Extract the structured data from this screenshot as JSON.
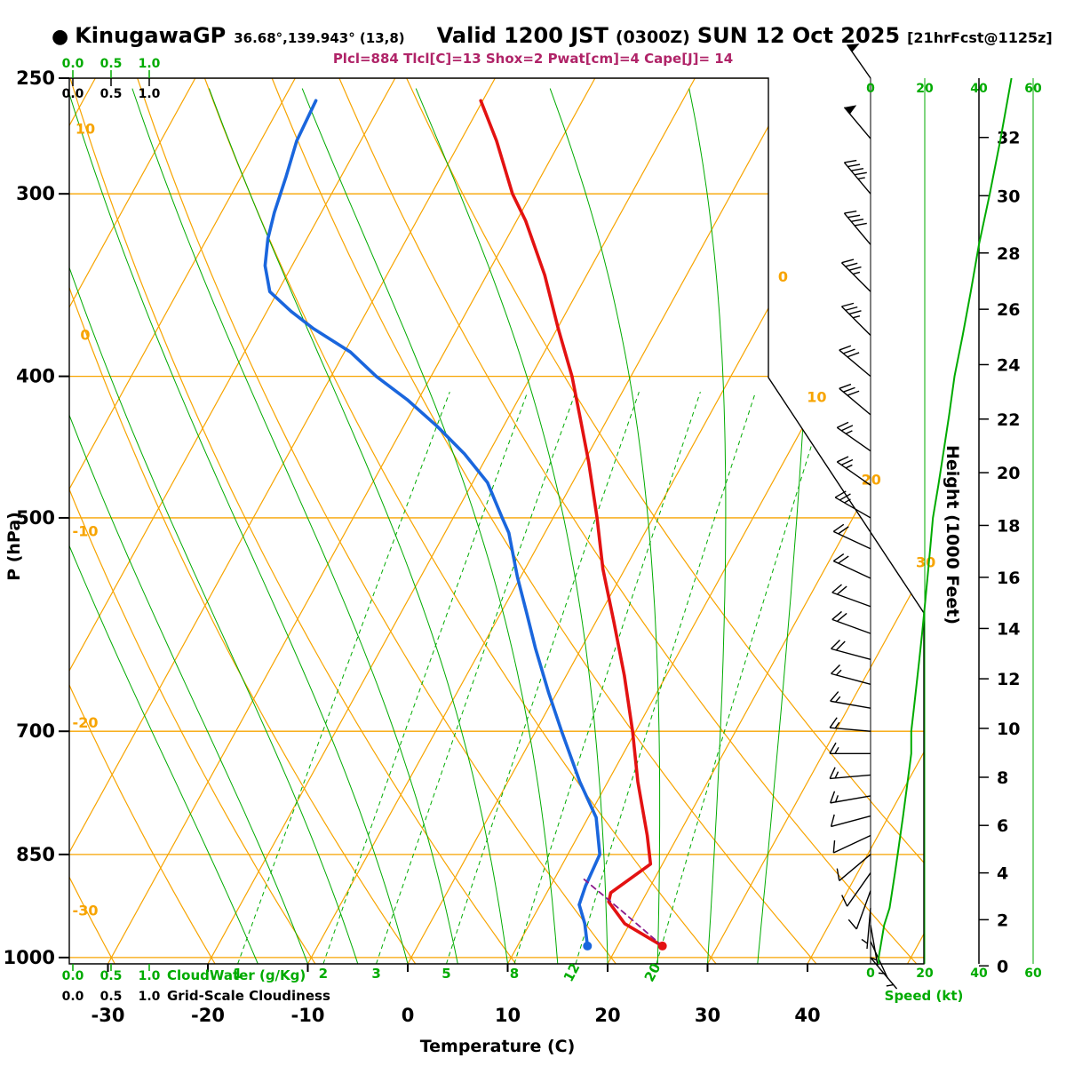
{
  "header": {
    "marker": "●",
    "station": "KinugawaGP",
    "coords": "36.68°,139.943° (13,8)",
    "valid": "Valid 1200 JST",
    "valid_z": "(0300Z)",
    "valid_date": "SUN 12 Oct 2025",
    "fcst": "[21hrFcst@1125z]",
    "params": "Plcl=884 Tlcl[C]=13 Shox=2 Pwat[cm]=4 Cape[J]= 14"
  },
  "axes": {
    "pressure_label": "P (hPa)",
    "pressure_ticks": [
      250,
      300,
      400,
      500,
      700,
      850,
      1000
    ],
    "temp_label": "Temperature (C)",
    "temp_ticks": [
      -30,
      -20,
      -10,
      0,
      10,
      20,
      30,
      40
    ],
    "height_label": "Height (1000 Feet)",
    "height_ticks": [
      0,
      2,
      4,
      6,
      8,
      10,
      12,
      14,
      16,
      18,
      20,
      22,
      24,
      26,
      28,
      30,
      32
    ],
    "speed_label": "Speed (kt)",
    "speed_ticks": [
      0,
      20,
      40,
      60
    ],
    "cloudwater_label": "CloudWater (g/Kg)",
    "cloudiness_label": "Grid-Scale Cloudiness",
    "cloud_scale_ticks": [
      "0.0",
      "0.5",
      "1.0"
    ],
    "isotherm_labels": [
      0,
      10,
      20,
      30
    ],
    "dry_adiabat_labels": [
      10,
      0,
      -10,
      -20,
      -30
    ],
    "mixing_ratio_labels": [
      1,
      2,
      3,
      5,
      8,
      12,
      20
    ]
  },
  "colors": {
    "orange": "#f7a400",
    "green": "#00ab00",
    "red": "#e31212",
    "blue": "#1a66dd",
    "purple": "#8b1a8b",
    "black": "#000000",
    "params_magenta": "#b02468"
  },
  "chart_data": {
    "type": "line",
    "variant": "skew-t-log-p sounding",
    "title": "KinugawaGP forecast sounding valid 1200 JST SUN 12 Oct 2025",
    "xlabel": "Temperature (C)",
    "ylabel": "P (hPa)",
    "pressure_range_hpa": [
      250,
      1010
    ],
    "series": [
      {
        "name": "temperature",
        "color_key": "red",
        "points_p_t": [
          [
            982,
            24.5
          ],
          [
            948,
            19.5
          ],
          [
            916,
            16.7
          ],
          [
            903,
            16.4
          ],
          [
            863,
            18.8
          ],
          [
            825,
            16.9
          ],
          [
            758,
            13.0
          ],
          [
            700,
            9.7
          ],
          [
            641,
            5.8
          ],
          [
            589,
            1.8
          ],
          [
            542,
            -2.2
          ],
          [
            500,
            -5.6
          ],
          [
            458,
            -9.5
          ],
          [
            427,
            -12.8
          ],
          [
            400,
            -15.9
          ],
          [
            371,
            -19.9
          ],
          [
            341,
            -24.2
          ],
          [
            313,
            -29.1
          ],
          [
            300,
            -31.9
          ],
          [
            276,
            -36.4
          ],
          [
            259,
            -40.2
          ]
        ]
      },
      {
        "name": "dewpoint",
        "color_key": "blue",
        "points_p_t": [
          [
            982,
            17.0
          ],
          [
            948,
            15.5
          ],
          [
            920,
            13.9
          ],
          [
            893,
            13.5
          ],
          [
            850,
            13.2
          ],
          [
            802,
            10.8
          ],
          [
            758,
            7.2
          ],
          [
            700,
            2.6
          ],
          [
            659,
            -0.8
          ],
          [
            614,
            -4.6
          ],
          [
            581,
            -7.4
          ],
          [
            549,
            -10.3
          ],
          [
            512,
            -13.6
          ],
          [
            500,
            -15.1
          ],
          [
            473,
            -18.5
          ],
          [
            452,
            -22.4
          ],
          [
            433,
            -26.6
          ],
          [
            415,
            -31.1
          ],
          [
            400,
            -35.5
          ],
          [
            385,
            -39.4
          ],
          [
            371,
            -44.4
          ],
          [
            361,
            -47.6
          ],
          [
            350,
            -50.8
          ],
          [
            336,
            -52.7
          ],
          [
            322,
            -53.9
          ],
          [
            309,
            -54.7
          ],
          [
            292,
            -55.5
          ],
          [
            276,
            -56.4
          ],
          [
            259,
            -56.7
          ]
        ]
      },
      {
        "name": "parcel",
        "color_key": "purple",
        "style": "dashed",
        "points_p_t": [
          [
            982,
            24.5
          ],
          [
            930,
            18.6
          ],
          [
            884,
            13.0
          ]
        ]
      }
    ],
    "wind_profile": [
      [
        1000,
        140,
        3
      ],
      [
        975,
        155,
        4
      ],
      [
        950,
        170,
        5
      ],
      [
        925,
        185,
        7
      ],
      [
        900,
        200,
        8
      ],
      [
        875,
        215,
        9
      ],
      [
        850,
        230,
        10
      ],
      [
        825,
        245,
        11
      ],
      [
        800,
        255,
        12
      ],
      [
        775,
        260,
        13
      ],
      [
        750,
        265,
        14
      ],
      [
        725,
        270,
        15
      ],
      [
        700,
        275,
        15
      ],
      [
        675,
        280,
        16
      ],
      [
        650,
        285,
        17
      ],
      [
        625,
        285,
        18
      ],
      [
        600,
        290,
        19
      ],
      [
        575,
        290,
        20
      ],
      [
        550,
        295,
        21
      ],
      [
        525,
        295,
        22
      ],
      [
        500,
        300,
        23
      ],
      [
        475,
        305,
        25
      ],
      [
        450,
        305,
        27
      ],
      [
        425,
        310,
        29
      ],
      [
        400,
        310,
        31
      ],
      [
        375,
        315,
        34
      ],
      [
        350,
        315,
        37
      ],
      [
        325,
        320,
        40
      ],
      [
        300,
        320,
        44
      ],
      [
        275,
        320,
        48
      ],
      [
        250,
        325,
        52
      ]
    ],
    "surface": {
      "pressure_hpa": 982,
      "temperature_c": 24.5,
      "dewpoint_c": 17.0
    },
    "parameters": {
      "Plcl_hpa": 884,
      "Tlcl_c": 13,
      "Showalter": 2,
      "Pwat_cm": 4,
      "Cape_j": 14
    }
  }
}
